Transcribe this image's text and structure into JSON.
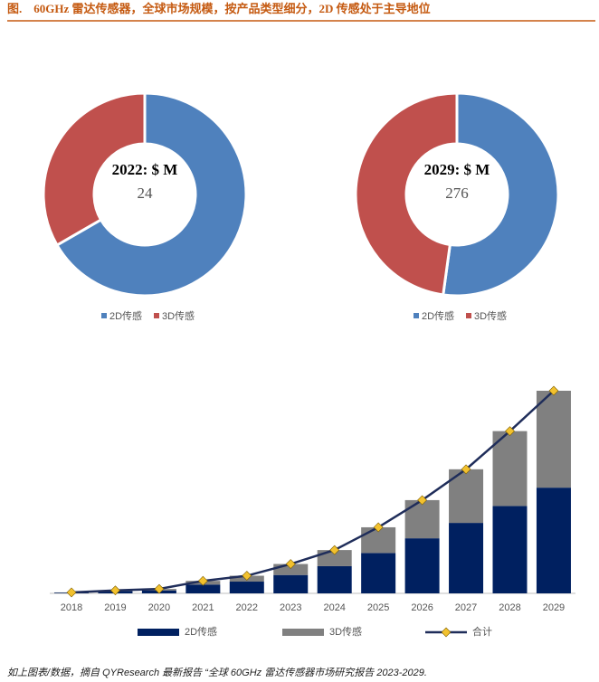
{
  "title": "图.　60GHz 雷达传感器，全球市场规模，按产品类型细分，2D 传感处于主导地位",
  "chart_data": [
    {
      "type": "donut",
      "center_title": "2022: $ M",
      "center_value": 24,
      "categories": [
        "2D传感",
        "3D传感"
      ],
      "values": [
        16,
        8
      ],
      "colors": [
        "#4f81bd",
        "#c0504d"
      ]
    },
    {
      "type": "donut",
      "center_title": "2029: $ M",
      "center_value": 276,
      "categories": [
        "2D传感",
        "3D传感"
      ],
      "values": [
        144,
        132
      ],
      "colors": [
        "#4f81bd",
        "#c0504d"
      ]
    },
    {
      "type": "bar",
      "stacked": true,
      "categories": [
        "2018",
        "2019",
        "2020",
        "2021",
        "2022",
        "2023",
        "2024",
        "2025",
        "2026",
        "2027",
        "2028",
        "2029"
      ],
      "series": [
        {
          "name": "2D传感",
          "color": "#002060",
          "values": [
            1,
            3,
            4,
            12,
            16,
            25,
            37,
            55,
            75,
            96,
            119,
            144
          ]
        },
        {
          "name": "3D传感",
          "color": "#808080",
          "values": [
            0.3,
            1,
            2,
            5,
            8,
            15,
            22,
            35,
            52,
            73,
            102,
            132
          ]
        },
        {
          "name": "合计",
          "type": "line",
          "color": "#1f2d5a",
          "marker_color": "#f2c12e",
          "values": [
            1.3,
            4,
            6,
            17,
            24,
            40,
            59,
            90,
            127,
            169,
            221,
            276
          ]
        }
      ]
    }
  ],
  "source": "如上图表/数据，摘自 QYResearch 最新报告 “全球 60GHz 雷达传感器市场研究报告 2023-2029."
}
